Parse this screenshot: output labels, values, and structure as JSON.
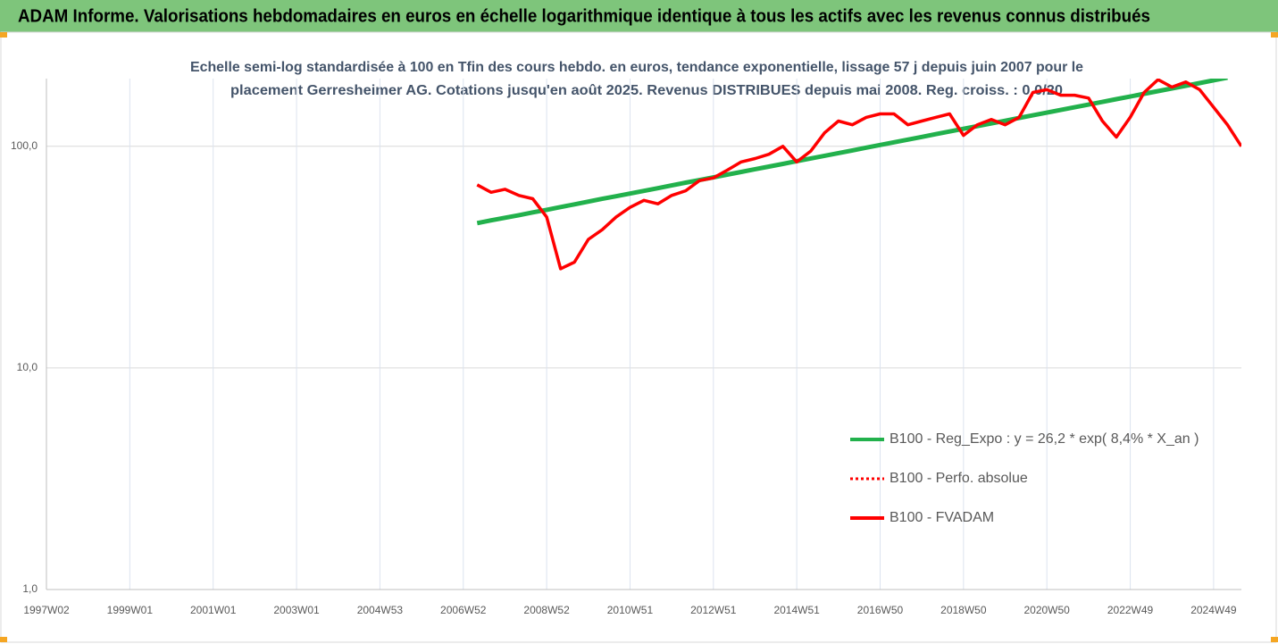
{
  "chart_data": {
    "type": "line",
    "title": "ADAM Informe. Valorisations hebdomadaires en euros en échelle logarithmique identique à tous les actifs avec les revenus connus distribués",
    "subtitle": [
      "Echelle semi-log standardisée à 100 en Tfin des cours hebdo. en euros, tendance exponentielle, lissage 57 j depuis juin 2007 pour le",
      "placement Gerresheimer AG. Cotations jusqu'en août 2025. Revenus DISTRIBUES depuis mai 2008. Reg. croiss. : 0,0/20"
    ],
    "categories": [
      "1997W02",
      null,
      null,
      null,
      null,
      null,
      "1999W01",
      null,
      null,
      null,
      null,
      null,
      "2001W01",
      null,
      null,
      null,
      null,
      null,
      "2003W01",
      null,
      null,
      null,
      null,
      null,
      "2004W53",
      null,
      null,
      null,
      null,
      null,
      "2006W52",
      null,
      null,
      null,
      null,
      null,
      "2008W52",
      null,
      null,
      null,
      null,
      null,
      "2010W51",
      null,
      null,
      null,
      null,
      null,
      "2012W51",
      null,
      null,
      null,
      null,
      null,
      "2014W51",
      null,
      null,
      null,
      null,
      null,
      "2016W50",
      null,
      null,
      null,
      null,
      null,
      "2018W50",
      null,
      null,
      null,
      null,
      null,
      "2020W50",
      null,
      null,
      null,
      null,
      null,
      "2022W49",
      null,
      null,
      null,
      null,
      null,
      "2024W49",
      null,
      null
    ],
    "log_scale": true,
    "grid": true,
    "ylim": [
      1,
      202
    ],
    "yticks": [
      {
        "value": 1,
        "label": "1,0"
      },
      {
        "value": 10,
        "label": "10,0"
      },
      {
        "value": 100,
        "label": "100,0"
      }
    ],
    "legend": "right",
    "series": [
      {
        "name": "B100 - Reg_Expo : y = 26,2 * exp( 8,4% *  X_an )",
        "color": "#22b14c",
        "style": "solid",
        "values": [
          null,
          null,
          null,
          null,
          null,
          null,
          null,
          null,
          null,
          null,
          null,
          null,
          null,
          null,
          null,
          null,
          null,
          null,
          null,
          null,
          null,
          null,
          null,
          null,
          null,
          null,
          null,
          null,
          null,
          null,
          null,
          45.0,
          46.3,
          47.6,
          48.9,
          50.3,
          51.7,
          53.2,
          54.7,
          56.3,
          57.9,
          59.5,
          61.2,
          62.9,
          64.7,
          66.6,
          68.5,
          70.4,
          72.4,
          74.5,
          76.6,
          78.8,
          81.0,
          83.3,
          85.7,
          88.1,
          90.6,
          93.2,
          95.8,
          98.6,
          101.4,
          104.2,
          107.2,
          110.2,
          113.4,
          116.6,
          119.9,
          123.3,
          126.8,
          130.4,
          134.1,
          137.9,
          141.8,
          145.8,
          150.0,
          154.2,
          158.6,
          163.1,
          167.7,
          172.5,
          177.4,
          182.4,
          187.6,
          192.9,
          198.4,
          204.0,
          null
        ]
      },
      {
        "name": "B100 - Perfo. absolue",
        "color": "#ff0000",
        "style": "dotted",
        "values": [
          null,
          null,
          null,
          null,
          null,
          null,
          null,
          null,
          null,
          null,
          null,
          null,
          null,
          null,
          null,
          null,
          null,
          null,
          null,
          null,
          null,
          null,
          null,
          null,
          null,
          null,
          null,
          null,
          null,
          null,
          null,
          null,
          null,
          null,
          null,
          null,
          null,
          null,
          null,
          null,
          null,
          null,
          null,
          null,
          null,
          null,
          null,
          null,
          null,
          null,
          null,
          null,
          null,
          null,
          null,
          null,
          null,
          null,
          null,
          null,
          null,
          null,
          null,
          null,
          null,
          null,
          null,
          null,
          null,
          null,
          null,
          null,
          null,
          null,
          null,
          null,
          null,
          null,
          null,
          null,
          null,
          null,
          null,
          null,
          null,
          null,
          null
        ]
      },
      {
        "name": "B100 - FVADAM",
        "color": "#ff0000",
        "style": "solid",
        "values": [
          null,
          null,
          null,
          null,
          null,
          null,
          null,
          null,
          null,
          null,
          null,
          null,
          null,
          null,
          null,
          null,
          null,
          null,
          null,
          null,
          null,
          null,
          null,
          null,
          null,
          null,
          null,
          null,
          null,
          null,
          null,
          67,
          62,
          64,
          60,
          58,
          48,
          28,
          30,
          38,
          42,
          48,
          53,
          57,
          55,
          60,
          63,
          70,
          72,
          78,
          85,
          88,
          92,
          100,
          85,
          95,
          115,
          130,
          125,
          135,
          140,
          140,
          125,
          130,
          135,
          140,
          112,
          125,
          132,
          125,
          135,
          175,
          180,
          170,
          170,
          165,
          130,
          110,
          135,
          175,
          200,
          185,
          195,
          180,
          150,
          125,
          100
        ]
      }
    ]
  }
}
